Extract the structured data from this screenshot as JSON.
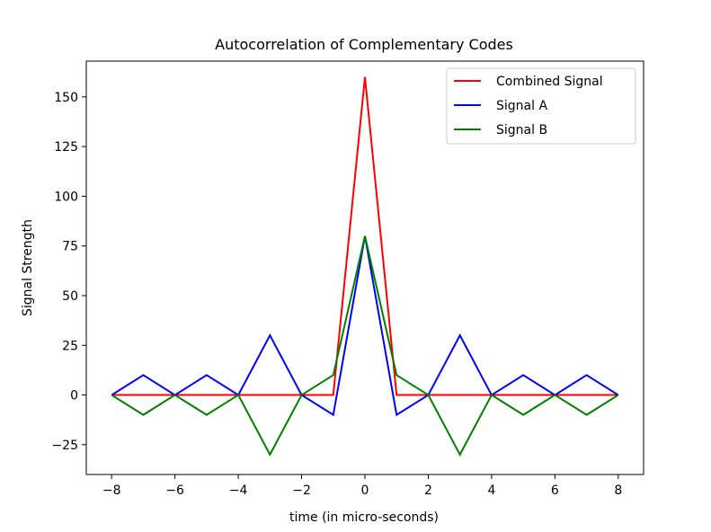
{
  "chart_data": {
    "type": "line",
    "title": "Autocorrelation of Complementary Codes",
    "xlabel": "time (in micro-seconds)",
    "ylabel": "Signal Strength",
    "xlim": [
      -8.8,
      8.8
    ],
    "ylim": [
      -40,
      168
    ],
    "xticks": [
      -8,
      -6,
      -4,
      -2,
      0,
      2,
      4,
      6,
      8
    ],
    "xtick_labels": [
      "−8",
      "−6",
      "−4",
      "−2",
      "0",
      "2",
      "4",
      "6",
      "8"
    ],
    "yticks": [
      -25,
      0,
      25,
      50,
      75,
      100,
      125,
      150
    ],
    "ytick_labels": [
      "−25",
      "0",
      "25",
      "50",
      "75",
      "100",
      "125",
      "150"
    ],
    "grid": false,
    "legend_position": "top-right",
    "x": [
      -8,
      -7,
      -6,
      -5,
      -4,
      -3,
      -2,
      -1,
      0,
      1,
      2,
      3,
      4,
      5,
      6,
      7,
      8
    ],
    "series": [
      {
        "name": "Combined Signal",
        "color": "#ff0000",
        "values": [
          0,
          0,
          0,
          0,
          0,
          0,
          0,
          0,
          160,
          0,
          0,
          0,
          0,
          0,
          0,
          0,
          0
        ]
      },
      {
        "name": "Signal A",
        "color": "#0000ff",
        "values": [
          0,
          10,
          0,
          10,
          0,
          30,
          0,
          -10,
          80,
          -10,
          0,
          30,
          0,
          10,
          0,
          10,
          0
        ]
      },
      {
        "name": "Signal B",
        "color": "#008000",
        "values": [
          0,
          -10,
          0,
          -10,
          0,
          -30,
          0,
          10,
          80,
          10,
          0,
          -30,
          0,
          -10,
          0,
          -10,
          0
        ]
      }
    ]
  }
}
